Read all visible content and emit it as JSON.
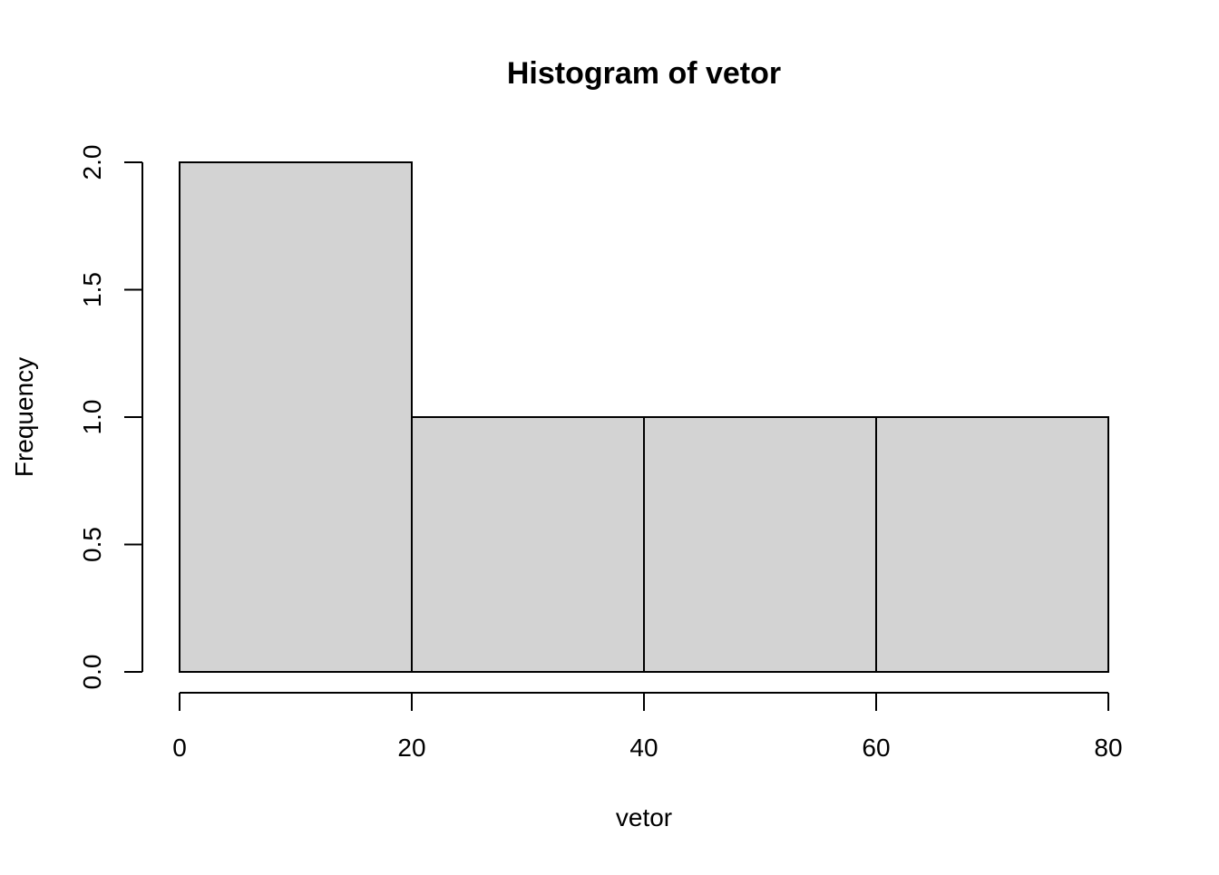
{
  "chart_data": {
    "type": "bar",
    "title": "Histogram of vetor",
    "xlabel": "vetor",
    "ylabel": "Frequency",
    "bins": [
      {
        "start": 0,
        "end": 20,
        "count": 2
      },
      {
        "start": 20,
        "end": 40,
        "count": 1
      },
      {
        "start": 40,
        "end": 60,
        "count": 1
      },
      {
        "start": 60,
        "end": 80,
        "count": 1
      }
    ],
    "xlim": [
      0,
      80
    ],
    "ylim": [
      0,
      2
    ],
    "x_ticks": [
      "0",
      "20",
      "40",
      "60",
      "80"
    ],
    "y_ticks": [
      "0.0",
      "0.5",
      "1.0",
      "1.5",
      "2.0"
    ],
    "bar_fill": "#d3d3d3",
    "bar_stroke": "#000000",
    "grid": false,
    "legend": "none"
  }
}
